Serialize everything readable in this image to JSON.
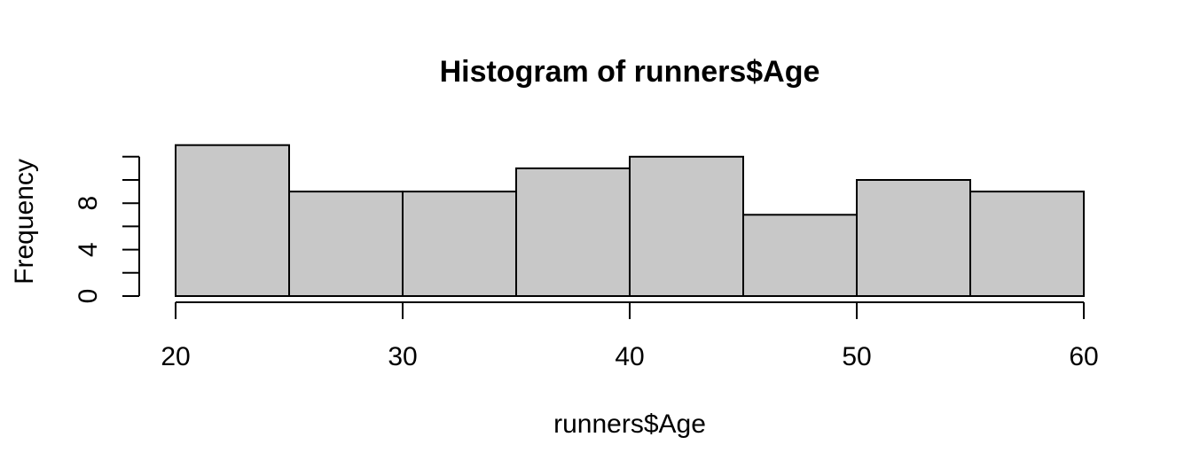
{
  "chart_data": {
    "type": "bar",
    "title": "Histogram of runners$Age",
    "xlabel": "runners$Age",
    "ylabel": "Frequency",
    "bins": [
      {
        "start": 20,
        "end": 25,
        "count": 13
      },
      {
        "start": 25,
        "end": 30,
        "count": 9
      },
      {
        "start": 30,
        "end": 35,
        "count": 9
      },
      {
        "start": 35,
        "end": 40,
        "count": 11
      },
      {
        "start": 40,
        "end": 45,
        "count": 12
      },
      {
        "start": 45,
        "end": 50,
        "count": 7
      },
      {
        "start": 50,
        "end": 55,
        "count": 10
      },
      {
        "start": 55,
        "end": 60,
        "count": 9
      }
    ],
    "xlim": [
      20,
      60
    ],
    "ylim": [
      0,
      12
    ],
    "x_ticks": [
      20,
      30,
      40,
      50,
      60
    ],
    "y_ticks": [
      0,
      2,
      4,
      6,
      8,
      10,
      12
    ],
    "y_tick_labels": [
      {
        "value": 0,
        "label": "0"
      },
      {
        "value": 4,
        "label": "4"
      },
      {
        "value": 8,
        "label": "8"
      }
    ],
    "grid": false,
    "bar_color": "#c8c8c8",
    "edge_color": "#000000"
  }
}
